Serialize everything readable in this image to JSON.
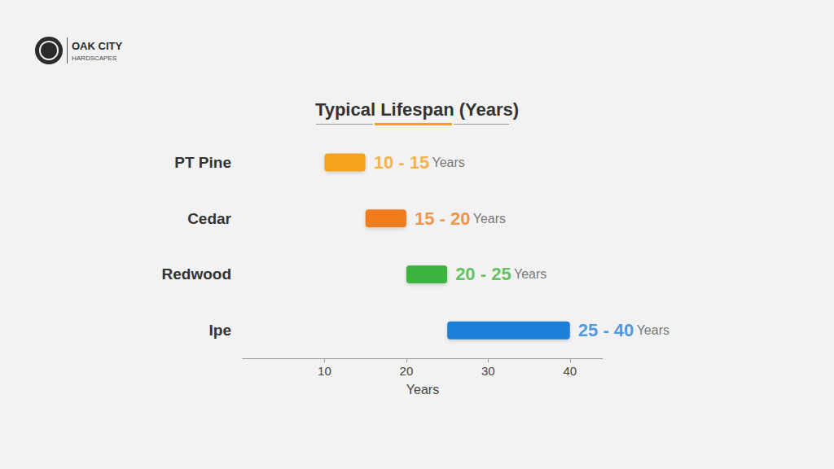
{
  "chart_data": {
    "type": "bar",
    "orientation": "horizontal",
    "title": "Typical Lifespan (Years)",
    "annotations": [
      "OAK CITY",
      "HARDSCAPES"
    ],
    "categories": [
      "PT Pine",
      "Cedar",
      "Redwood",
      "Ipe"
    ],
    "low": [
      10,
      15,
      20,
      25
    ],
    "high": [
      15,
      20,
      25,
      40
    ],
    "value_labels": [
      "10 - 15 Years",
      "15 - 20 Years",
      "20 - 25 Years",
      "25 - 40 Years"
    ],
    "colors": [
      "#f5a21b",
      "#f07c1c",
      "#3cb43c",
      "#1f80d9"
    ],
    "xlabel": "Years",
    "xlim": [
      0,
      44
    ],
    "xticks": [
      10,
      20,
      30,
      40
    ],
    "grid": false,
    "data_labels": true
  }
}
